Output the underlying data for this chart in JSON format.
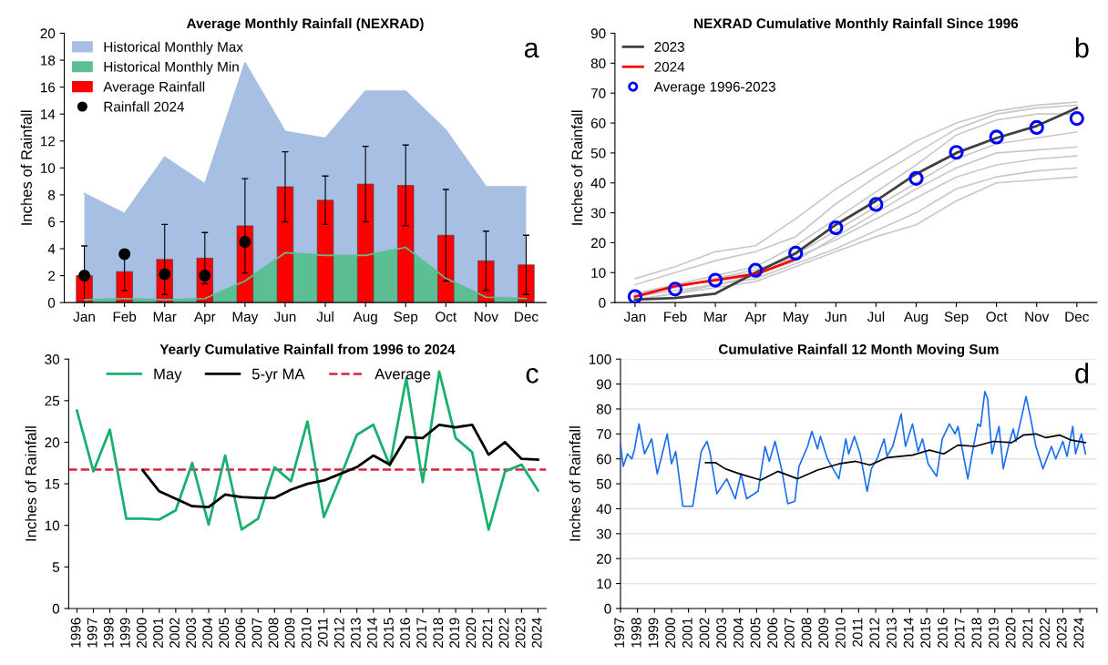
{
  "chart_data": [
    {
      "type": "bar",
      "title": "Average Monthly Rainfall (NEXRAD)",
      "ylabel": "Inches of Rainfall",
      "annotations": [
        "a"
      ],
      "categories": [
        "Jan",
        "Feb",
        "Mar",
        "Apr",
        "May",
        "Jun",
        "Jul",
        "Aug",
        "Sep",
        "Oct",
        "Nov",
        "Dec"
      ],
      "ylim": [
        0,
        20
      ],
      "yticks": [
        0,
        2,
        4,
        6,
        8,
        10,
        12,
        14,
        16,
        18,
        20
      ],
      "legend": "top left",
      "series": [
        {
          "name": "Historical Monthly Max",
          "type": "area",
          "color": "#a6bfe3",
          "values": [
            8.1,
            6.6,
            10.8,
            8.8,
            17.8,
            12.7,
            12.2,
            15.7,
            15.7,
            12.8,
            8.6,
            8.6
          ]
        },
        {
          "name": "Historical Monthly Min",
          "type": "area",
          "color": "#5cbf94",
          "values": [
            0.2,
            0.3,
            0.2,
            0.3,
            1.6,
            3.7,
            3.5,
            3.5,
            4.1,
            1.8,
            0.4,
            0.3
          ]
        },
        {
          "name": "Average Rainfall",
          "type": "bar",
          "color": "#ff0000",
          "values": [
            2.0,
            2.3,
            3.2,
            3.3,
            5.7,
            8.6,
            7.6,
            8.8,
            8.7,
            5.0,
            3.1,
            2.8
          ],
          "errors": [
            2.2,
            1.4,
            2.6,
            1.9,
            3.5,
            2.6,
            1.8,
            2.8,
            3.0,
            3.4,
            2.2,
            2.2
          ]
        },
        {
          "name": "Rainfall 2024",
          "type": "scatter",
          "color": "#000000",
          "marker": "circle",
          "values": [
            2.0,
            3.6,
            2.1,
            2.0,
            4.5,
            null,
            null,
            null,
            null,
            null,
            null,
            null
          ]
        }
      ]
    },
    {
      "type": "line",
      "title": "NEXRAD Cumulative Monthly Rainfall Since 1996",
      "ylabel": "Inches of Rainfall",
      "annotations": [
        "b"
      ],
      "categories": [
        "Jan",
        "Feb",
        "Mar",
        "Apr",
        "May",
        "Jun",
        "Jul",
        "Aug",
        "Sep",
        "Oct",
        "Nov",
        "Dec"
      ],
      "ylim": [
        0,
        90
      ],
      "yticks": [
        0,
        10,
        20,
        30,
        40,
        50,
        60,
        70,
        80,
        90
      ],
      "legend": "top left",
      "series": [
        {
          "color": "#c8c8c8",
          "values": [
            8,
            12,
            17,
            19,
            28,
            38,
            46,
            54,
            60,
            64,
            66,
            67
          ]
        },
        {
          "color": "#c8c8c8",
          "values": [
            6,
            10,
            14,
            17,
            22,
            33,
            42,
            50,
            58,
            63,
            65,
            66
          ]
        },
        {
          "color": "#c8c8c8",
          "values": [
            3,
            6,
            9,
            12,
            19,
            28,
            37,
            46,
            56,
            61,
            63,
            63
          ]
        },
        {
          "color": "#c8c8c8",
          "values": [
            2,
            5,
            8,
            10,
            16,
            24,
            32,
            40,
            48,
            53,
            55,
            57
          ]
        },
        {
          "color": "#c8c8c8",
          "values": [
            1,
            3,
            6,
            9,
            14,
            22,
            30,
            38,
            45,
            50,
            51,
            52
          ]
        },
        {
          "color": "#c8c8c8",
          "values": [
            3,
            5,
            8,
            11,
            15,
            21,
            28,
            35,
            42,
            46,
            48,
            49
          ]
        },
        {
          "color": "#c8c8c8",
          "values": [
            2,
            4,
            6,
            8,
            13,
            18,
            24,
            30,
            38,
            42,
            44,
            45
          ]
        },
        {
          "color": "#c8c8c8",
          "values": [
            1,
            3,
            5,
            7,
            12,
            17,
            22,
            26,
            34,
            40,
            41,
            42
          ]
        },
        {
          "name": "2023",
          "color": "#404040",
          "values": [
            1,
            1.5,
            3,
            10,
            16.5,
            26,
            34,
            43,
            50,
            55,
            59,
            65
          ]
        },
        {
          "name": "2024",
          "color": "#ff0000",
          "values": [
            2,
            5.5,
            7.5,
            9.5,
            14.5,
            null,
            null,
            null,
            null,
            null,
            null,
            null
          ]
        },
        {
          "name": "Average 1996-2023",
          "type": "scatter",
          "marker": "circle",
          "color": "#0000ff",
          "values": [
            2,
            4.5,
            7.5,
            10.8,
            16.5,
            25,
            32.8,
            41.5,
            50.2,
            55.3,
            58.5,
            61.5
          ]
        }
      ]
    },
    {
      "type": "line",
      "title": "Yearly Cumulative Rainfall from 1996 to 2024",
      "ylabel": "Inches of Rainfall",
      "annotations": [
        "c"
      ],
      "categories": [
        "1996",
        "1997",
        "1998",
        "1999",
        "2000",
        "2001",
        "2002",
        "2003",
        "2004",
        "2005",
        "2006",
        "2007",
        "2008",
        "2009",
        "2010",
        "2011",
        "2012",
        "2013",
        "2014",
        "2015",
        "2016",
        "2017",
        "2018",
        "2019",
        "2020",
        "2021",
        "2022",
        "2023",
        "2024"
      ],
      "ylim": [
        0,
        30
      ],
      "yticks": [
        0,
        5,
        10,
        15,
        20,
        25,
        30
      ],
      "legend": "top",
      "ref_lines": [
        {
          "axis": "y",
          "value": 16.7,
          "label": "Average",
          "color": "#e0213a",
          "line_style": "dashed"
        }
      ],
      "series": [
        {
          "name": "May",
          "color": "#19b06e",
          "values": [
            23.8,
            16.5,
            21.5,
            10.8,
            10.8,
            10.7,
            11.8,
            17.5,
            10.1,
            18.4,
            9.5,
            10.8,
            17.0,
            15.3,
            22.5,
            11.0,
            15.8,
            20.9,
            22.1,
            17.2,
            27.7,
            15.2,
            28.5,
            20.5,
            18.8,
            9.5,
            16.5,
            17.3,
            14.2
          ]
        },
        {
          "name": "5-yr MA",
          "color": "#000000",
          "values": [
            null,
            null,
            null,
            null,
            16.6,
            14.1,
            13.2,
            12.3,
            12.2,
            13.7,
            13.4,
            13.3,
            13.3,
            14.3,
            15.0,
            15.4,
            16.2,
            17.0,
            18.4,
            17.3,
            20.6,
            20.5,
            22.1,
            21.8,
            22.1,
            18.5,
            20.0,
            18.0,
            17.9
          ]
        }
      ]
    },
    {
      "type": "line",
      "title": "Cumulative Rainfall 12 Month Moving Sum",
      "ylabel": "Inches of Rainfall",
      "annotations": [
        "d"
      ],
      "xlim": [
        "1997-01-01",
        "2025-01-01"
      ],
      "xticks": [
        "1997",
        "1998",
        "1999",
        "2000",
        "2001",
        "2002",
        "2003",
        "2004",
        "2005",
        "2006",
        "2007",
        "2008",
        "2009",
        "2010",
        "2011",
        "2012",
        "2013",
        "2014",
        "2015",
        "2016",
        "2017",
        "2018",
        "2019",
        "2020",
        "2021",
        "2022",
        "2023",
        "2024",
        {
          "value": "2025",
          "label": null
        }
      ],
      "ylim": [
        0,
        100
      ],
      "yticks": [
        0,
        10,
        20,
        30,
        40,
        50,
        60,
        70,
        80,
        90,
        100
      ],
      "grid": "y",
      "series": [
        {
          "color": "#1a6ff0",
          "x": [
            "1997-01",
            "1997-03",
            "1997-06",
            "1997-09",
            "1997-11",
            "1998-02",
            "1998-06",
            "1998-11",
            "1999-03",
            "1999-10",
            "2000-01",
            "2000-04",
            "2000-09",
            "2001-04",
            "2001-10",
            "2002-02",
            "2002-04",
            "2002-09",
            "2003-04",
            "2003-10",
            "2004-02",
            "2004-06",
            "2005-02",
            "2005-07",
            "2005-10",
            "2006-02",
            "2006-07",
            "2006-11",
            "2007-04",
            "2007-07",
            "2008-01",
            "2008-04",
            "2008-08",
            "2008-10",
            "2009-03",
            "2009-07",
            "2009-11",
            "2010-04",
            "2010-06",
            "2010-10",
            "2011-02",
            "2011-07",
            "2011-10",
            "2012-02",
            "2012-07",
            "2012-09",
            "2013-01",
            "2013-07",
            "2013-10",
            "2014-03",
            "2014-07",
            "2014-10",
            "2015-02",
            "2015-08",
            "2015-12",
            "2016-05",
            "2016-09",
            "2016-11",
            "2017-06",
            "2017-09",
            "2018-01",
            "2018-03",
            "2018-06",
            "2018-08",
            "2018-11",
            "2019-04",
            "2019-07",
            "2019-11",
            "2020-02",
            "2020-04",
            "2020-08",
            "2020-11",
            "2021-02",
            "2021-06",
            "2021-11",
            "2022-05",
            "2022-08",
            "2023-01",
            "2023-04",
            "2023-08",
            "2023-10",
            "2024-02",
            "2024-05"
          ],
          "values": [
            66,
            57,
            62,
            60,
            64,
            74,
            62,
            68,
            54,
            70,
            58,
            63,
            41,
            41,
            63,
            67,
            63,
            46,
            52,
            44,
            54,
            44,
            47,
            65,
            59,
            67,
            55,
            42,
            43,
            57,
            65,
            71,
            64,
            69,
            60,
            56,
            52,
            68,
            62,
            69,
            62,
            47,
            56,
            60,
            68,
            61,
            65,
            78,
            65,
            74,
            63,
            68,
            58,
            53,
            68,
            74,
            70,
            73,
            52,
            62,
            74,
            73,
            87,
            84,
            62,
            73,
            56,
            66,
            72,
            67,
            77,
            85,
            77,
            65,
            56,
            65,
            60,
            67,
            61,
            73,
            62,
            70,
            62
          ]
        },
        {
          "color": "#000000",
          "x": [
            "2002-01",
            "2002-08",
            "2003-03",
            "2004-01",
            "2005-04",
            "2006-04",
            "2007-06",
            "2008-08",
            "2009-11",
            "2010-11",
            "2011-09",
            "2012-09",
            "2014-03",
            "2015-03",
            "2016-01",
            "2016-11",
            "2017-11",
            "2018-12",
            "2020-01",
            "2020-09",
            "2021-06",
            "2022-01",
            "2022-11",
            "2023-07",
            "2024-05"
          ],
          "values": [
            58.5,
            58.5,
            56,
            54,
            51.5,
            55,
            52,
            55.5,
            58,
            59,
            57.5,
            60.5,
            61.5,
            63.5,
            62,
            65.5,
            65,
            67,
            66.5,
            69.5,
            70,
            68.5,
            69.5,
            67.5,
            66.5
          ]
        }
      ]
    }
  ]
}
